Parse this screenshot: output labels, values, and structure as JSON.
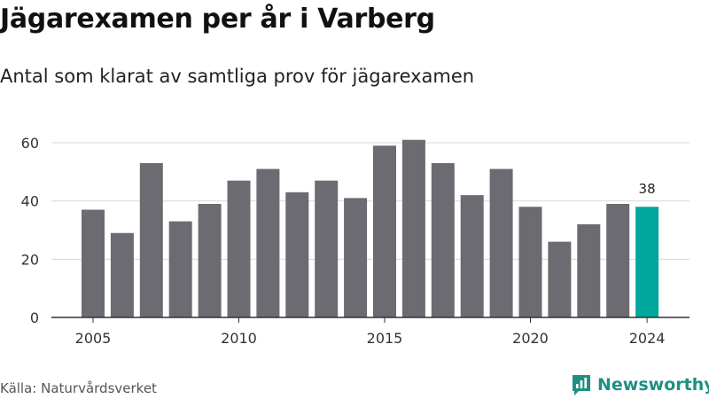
{
  "header": {
    "title": "Jägarexamen per år i Varberg",
    "subtitle": "Antal som klarat av samtliga prov för jägarexamen"
  },
  "footer": {
    "source": "Källa: Naturvårdsverket",
    "brand": "Newsworthy"
  },
  "colors": {
    "bar": "#6c6b71",
    "highlight": "#00a79d",
    "grid": "#d9d9d9",
    "axis": "#333333",
    "brand": "#1f8f83"
  },
  "chart_data": {
    "type": "bar",
    "title": "Jägarexamen per år i Varberg",
    "subtitle": "Antal som klarat av samtliga prov för jägarexamen",
    "x": [
      2005,
      2006,
      2007,
      2008,
      2009,
      2010,
      2011,
      2012,
      2013,
      2014,
      2015,
      2016,
      2017,
      2018,
      2019,
      2020,
      2021,
      2022,
      2023,
      2024
    ],
    "values": [
      37,
      29,
      53,
      33,
      39,
      47,
      51,
      43,
      47,
      41,
      59,
      61,
      53,
      42,
      51,
      38,
      26,
      32,
      39,
      38
    ],
    "highlight": {
      "x": 2024,
      "label": "38"
    },
    "xticks": [
      2005,
      2010,
      2015,
      2020,
      2024
    ],
    "yticks": [
      0,
      20,
      40,
      60
    ],
    "ylim": [
      0,
      65
    ],
    "xlabel": "",
    "ylabel": "",
    "grid": true
  }
}
